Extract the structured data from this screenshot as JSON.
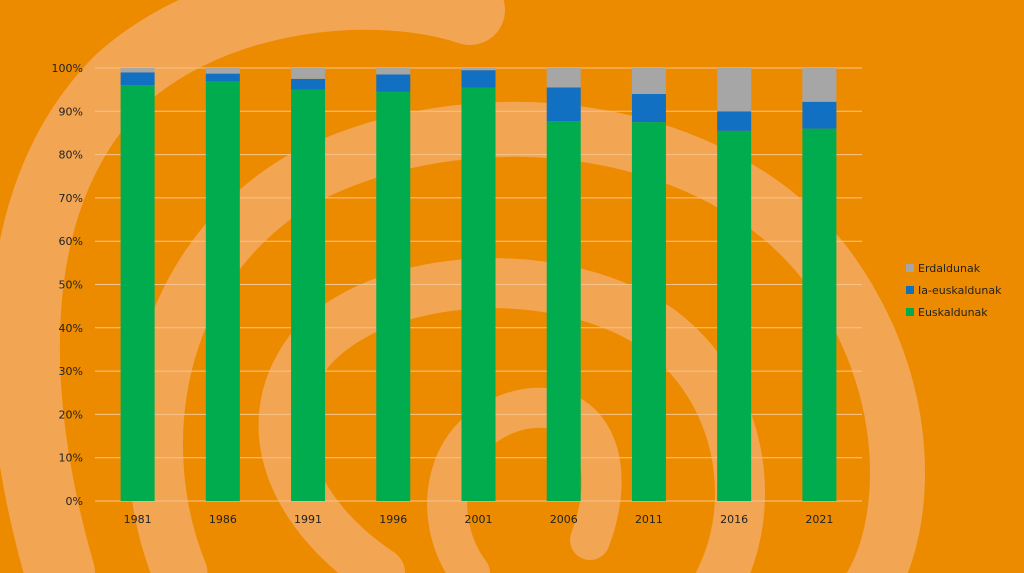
{
  "colors": {
    "background": "#ED8B00",
    "swirl": "#F2A553",
    "grid": "#F7C48A"
  },
  "chart_data": {
    "type": "bar",
    "stacked": true,
    "categories": [
      "1981",
      "1986",
      "1991",
      "1996",
      "2001",
      "2006",
      "2011",
      "2016",
      "2021"
    ],
    "series": [
      {
        "name": "Euskaldunak",
        "color": "#00AC4D",
        "values": [
          96,
          97,
          95,
          94.5,
          95.5,
          87.7,
          87.5,
          85.5,
          86
        ]
      },
      {
        "name": "Ia-euskaldunak",
        "color": "#1170C2",
        "values": [
          3,
          1.7,
          2.5,
          4,
          4,
          7.8,
          6.5,
          4.5,
          6.2
        ]
      },
      {
        "name": "Erdaldunak",
        "color": "#A6A6A6",
        "values": [
          1,
          1.3,
          2.5,
          1.5,
          0.5,
          4.5,
          6,
          10,
          7.8
        ]
      }
    ],
    "yticks": [
      "0%",
      "10%",
      "20%",
      "30%",
      "40%",
      "50%",
      "60%",
      "70%",
      "80%",
      "90%",
      "100%"
    ],
    "ylim": [
      0,
      100
    ],
    "grid": true,
    "legend": {
      "position": "right",
      "entries": [
        "Erdaldunak",
        "Ia-euskaldunak",
        "Euskaldunak"
      ]
    }
  }
}
